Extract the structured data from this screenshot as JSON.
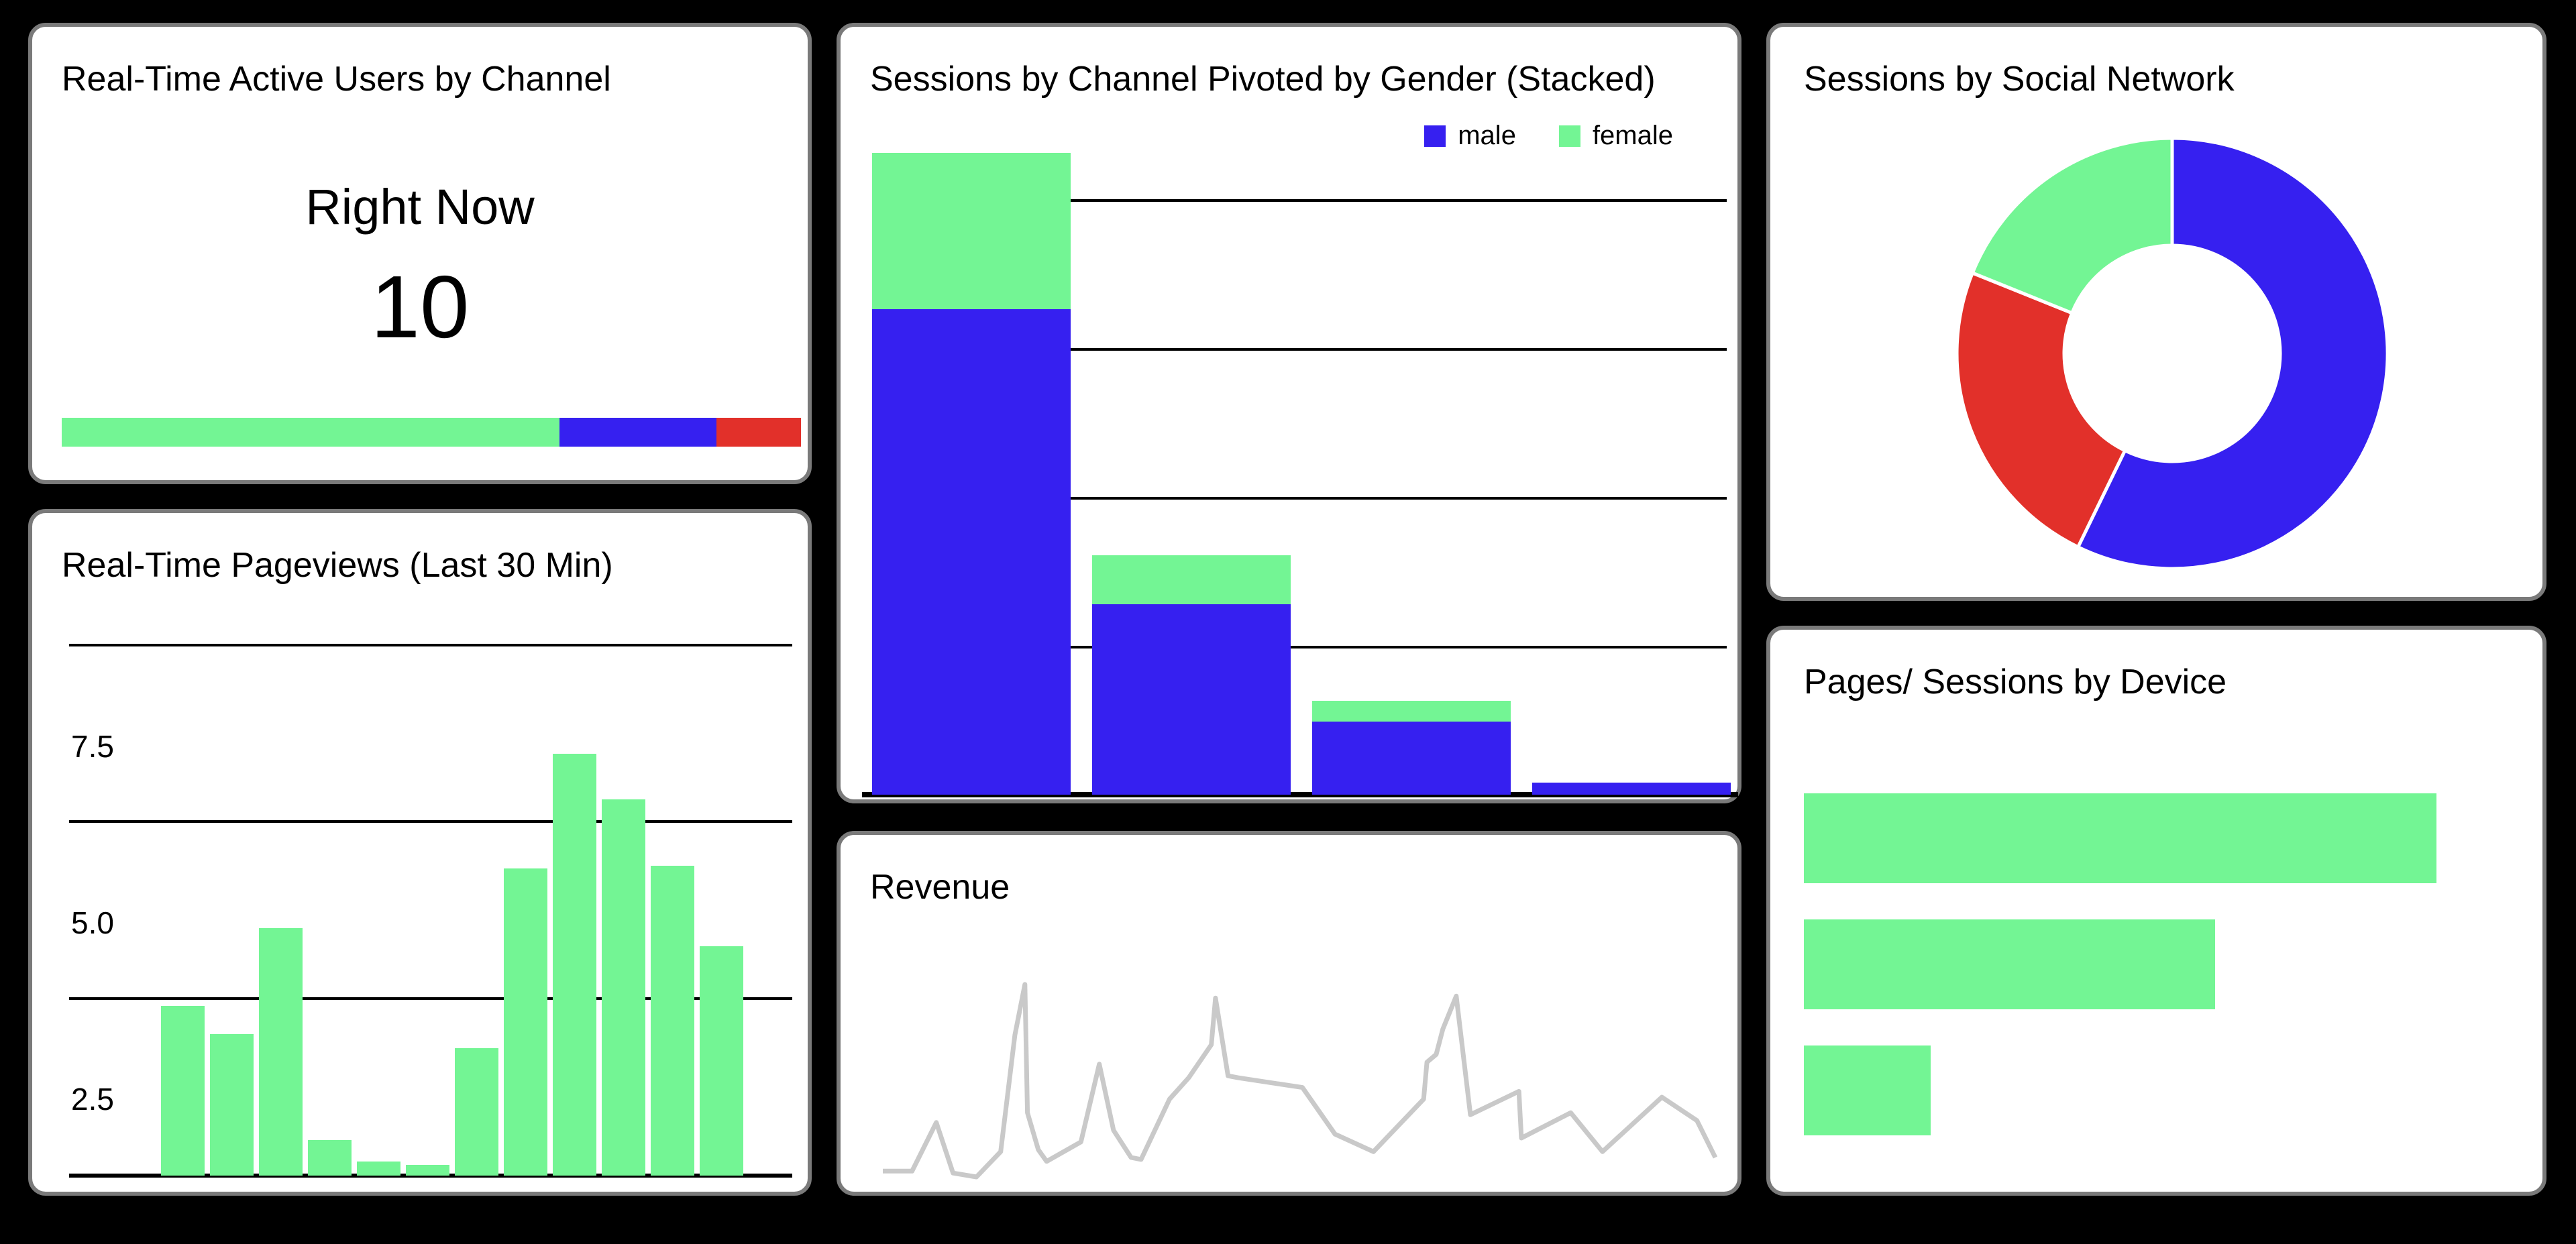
{
  "colors": {
    "green": "#73F594",
    "blue": "#3620F0",
    "red": "#E2302A",
    "line_gray": "#C9C9C9",
    "panel_border": "#7A7A7A",
    "panel_bg": "#FFFFFF",
    "page_bg": "#000000",
    "grid": "#000000",
    "text": "#000000"
  },
  "chart_data": [
    {
      "panel": "active_users",
      "type": "bar",
      "subtype": "single-stacked-horizontal",
      "title": "Real-Time Active Users by Channel",
      "center_label": "Right Now",
      "center_value": 10,
      "segments": [
        {
          "color": "green",
          "share_pct": 67.3
        },
        {
          "color": "blue",
          "share_pct": 21.3
        },
        {
          "color": "red",
          "share_pct": 11.4
        }
      ]
    },
    {
      "panel": "pageviews",
      "type": "bar",
      "title": "Real-Time Pageviews (Last 30 Min)",
      "ylabel_ticks": [
        "7.5",
        "5.0",
        "2.5"
      ],
      "ylim": [
        0,
        7.5
      ],
      "grid": true,
      "bar_color": "green",
      "values": [
        2.4,
        2.0,
        3.5,
        0.5,
        0.2,
        0.15,
        1.8,
        4.35,
        5.97,
        5.33,
        4.39,
        3.25
      ]
    },
    {
      "panel": "sessions_by_gender",
      "type": "bar",
      "subtype": "stacked-vertical",
      "title": "Sessions by Channel Pivoted by Gender (Stacked)",
      "legend": [
        "male",
        "female"
      ],
      "legend_position": "top-right",
      "x_tick_labels": [],
      "gridline_spacing_value": 100,
      "series": [
        {
          "name": "male",
          "color": "blue",
          "values": [
            326,
            128,
            49,
            8
          ]
        },
        {
          "name": "female",
          "color": "green",
          "values": [
            105,
            33,
            14,
            0
          ]
        }
      ]
    },
    {
      "panel": "revenue",
      "type": "line",
      "title": "Revenue",
      "line_color": "line_gray",
      "axes_visible": false,
      "points_norm": [
        [
          0,
          3
        ],
        [
          3.5,
          3
        ],
        [
          6.4,
          28
        ],
        [
          8.4,
          2
        ],
        [
          11.2,
          0
        ],
        [
          14.1,
          13
        ],
        [
          15.8,
          73
        ],
        [
          17,
          99
        ],
        [
          17.3,
          33
        ],
        [
          18.6,
          14
        ],
        [
          19.6,
          8
        ],
        [
          23.7,
          18
        ],
        [
          25.9,
          58
        ],
        [
          27.6,
          24
        ],
        [
          29.7,
          10
        ],
        [
          30.9,
          9
        ],
        [
          34.3,
          40
        ],
        [
          36.6,
          51
        ],
        [
          39.3,
          68
        ],
        [
          39.8,
          92
        ],
        [
          41.3,
          52
        ],
        [
          42.5,
          51
        ],
        [
          50.2,
          46
        ],
        [
          54.1,
          22
        ],
        [
          58.7,
          13
        ],
        [
          64.7,
          40
        ],
        [
          65.1,
          59
        ],
        [
          66.2,
          63
        ],
        [
          67,
          76
        ],
        [
          68.6,
          93
        ],
        [
          70.3,
          32
        ],
        [
          76.1,
          44
        ],
        [
          76.4,
          20
        ],
        [
          82.3,
          33
        ],
        [
          86.1,
          13
        ],
        [
          93.2,
          41
        ],
        [
          97.4,
          29
        ],
        [
          99.6,
          10
        ]
      ]
    },
    {
      "panel": "sessions_by_social_network",
      "type": "pie",
      "subtype": "donut",
      "title": "Sessions by Social Network",
      "start_angle_deg": 0,
      "inner_radius_ratio": 0.5,
      "slices": [
        {
          "color": "blue",
          "percent": 57.2
        },
        {
          "color": "red",
          "percent": 23.9
        },
        {
          "color": "green",
          "percent": 18.9
        }
      ]
    },
    {
      "panel": "pages_sessions_by_device",
      "type": "bar",
      "subtype": "horizontal",
      "title": "Pages/ Sessions by Device",
      "bar_color": "green",
      "values_pct_of_max": [
        100,
        65,
        20
      ]
    }
  ]
}
